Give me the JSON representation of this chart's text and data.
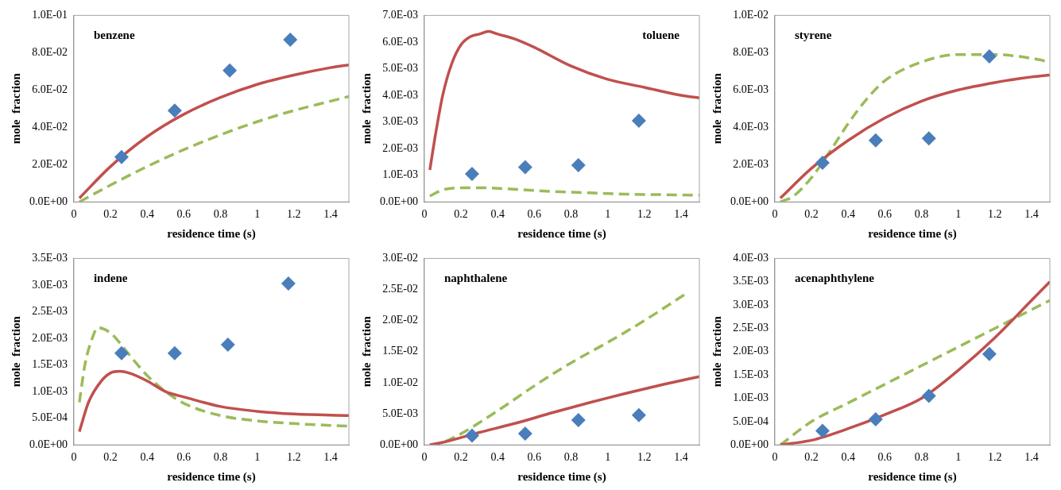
{
  "chart_data": [
    {
      "type": "line",
      "xlabel": "residence time (s)",
      "ylabel": "mole  fraction",
      "annotations": [
        "benzene"
      ],
      "xlim": [
        0,
        1.5
      ],
      "xticks": [
        0,
        0.2,
        0.4,
        0.6,
        0.8,
        1,
        1.2,
        1.4
      ],
      "ylim": [
        0,
        0.1
      ],
      "yticks": [
        {
          "value": 0,
          "label": "0.0E+00"
        },
        {
          "value": 0.02,
          "label": "2.0E-02"
        },
        {
          "value": 0.04,
          "label": "4.0E-02"
        },
        {
          "value": 0.06,
          "label": "6.0E-02"
        },
        {
          "value": 0.08,
          "label": "8.0E-02"
        },
        {
          "value": 0.1,
          "label": "1.0E-01"
        }
      ],
      "grid": false,
      "legend": false,
      "series": [
        {
          "type": "scatter",
          "marker": "diamond",
          "color": "#4a7ebb",
          "x": [
            0.26,
            0.55,
            0.85,
            1.18
          ],
          "values": [
            0.024,
            0.049,
            0.0705,
            0.087
          ]
        },
        {
          "type": "line",
          "marker": "none",
          "line_style": "solid",
          "color": "#c0504d",
          "x": [
            0.03,
            0.2,
            0.4,
            0.6,
            0.8,
            1.0,
            1.2,
            1.4,
            1.5
          ],
          "values": [
            0.002,
            0.019,
            0.035,
            0.047,
            0.056,
            0.063,
            0.068,
            0.072,
            0.0735
          ]
        },
        {
          "type": "line",
          "marker": "none",
          "line_style": "dashed",
          "color": "#9bbb59",
          "x": [
            0.03,
            0.2,
            0.4,
            0.6,
            0.8,
            1.0,
            1.2,
            1.4,
            1.5
          ],
          "values": [
            0,
            0.009,
            0.019,
            0.028,
            0.036,
            0.043,
            0.049,
            0.054,
            0.0565
          ]
        }
      ]
    },
    {
      "type": "line",
      "xlabel": "residence time (s)",
      "ylabel": "mole  fraction",
      "annotations": [
        "toluene"
      ],
      "xlim": [
        0,
        1.5
      ],
      "xticks": [
        0,
        0.2,
        0.4,
        0.6,
        0.8,
        1,
        1.2,
        1.4
      ],
      "ylim": [
        0,
        0.007
      ],
      "yticks": [
        {
          "value": 0,
          "label": "0.0E+00"
        },
        {
          "value": 0.001,
          "label": "1.0E-03"
        },
        {
          "value": 0.002,
          "label": "2.0E-03"
        },
        {
          "value": 0.003,
          "label": "3.0E-03"
        },
        {
          "value": 0.004,
          "label": "4.0E-03"
        },
        {
          "value": 0.005,
          "label": "5.0E-03"
        },
        {
          "value": 0.006,
          "label": "6.0E-03"
        },
        {
          "value": 0.007,
          "label": "7.0E-03"
        }
      ],
      "grid": false,
      "legend": false,
      "series": [
        {
          "type": "scatter",
          "marker": "diamond",
          "color": "#4a7ebb",
          "x": [
            0.26,
            0.55,
            0.84,
            1.17
          ],
          "values": [
            0.00105,
            0.0013,
            0.00138,
            0.00305
          ]
        },
        {
          "type": "line",
          "marker": "none",
          "line_style": "solid",
          "color": "#c0504d",
          "x": [
            0.03,
            0.06,
            0.1,
            0.15,
            0.2,
            0.25,
            0.3,
            0.35,
            0.4,
            0.5,
            0.6,
            0.8,
            1.0,
            1.2,
            1.4,
            1.5
          ],
          "values": [
            0.0012,
            0.0025,
            0.004,
            0.0052,
            0.0059,
            0.0062,
            0.0063,
            0.0064,
            0.0063,
            0.0061,
            0.0058,
            0.0051,
            0.0046,
            0.0043,
            0.004,
            0.0039
          ]
        },
        {
          "type": "line",
          "marker": "none",
          "line_style": "dashed",
          "color": "#9bbb59",
          "x": [
            0.03,
            0.1,
            0.2,
            0.3,
            0.5,
            0.7,
            0.9,
            1.1,
            1.3,
            1.5
          ],
          "values": [
            0.00022,
            0.00045,
            0.00053,
            0.00053,
            0.00047,
            0.00039,
            0.00034,
            0.00029,
            0.00027,
            0.00025
          ]
        }
      ]
    },
    {
      "type": "line",
      "xlabel": "residence time (s)",
      "ylabel": "mole  fraction",
      "annotations": [
        "styrene"
      ],
      "xlim": [
        0,
        1.5
      ],
      "xticks": [
        0,
        0.2,
        0.4,
        0.6,
        0.8,
        1,
        1.2,
        1.4
      ],
      "ylim": [
        0,
        0.01
      ],
      "yticks": [
        {
          "value": 0,
          "label": "0.0E+00"
        },
        {
          "value": 0.002,
          "label": "2.0E-03"
        },
        {
          "value": 0.004,
          "label": "4.0E-03"
        },
        {
          "value": 0.006,
          "label": "6.0E-03"
        },
        {
          "value": 0.008,
          "label": "8.0E-03"
        },
        {
          "value": 0.01,
          "label": "1.0E-02"
        }
      ],
      "grid": false,
      "legend": false,
      "series": [
        {
          "type": "scatter",
          "marker": "diamond",
          "color": "#4a7ebb",
          "x": [
            0.26,
            0.55,
            0.84,
            1.17
          ],
          "values": [
            0.0021,
            0.0033,
            0.0034,
            0.0078
          ]
        },
        {
          "type": "line",
          "marker": "none",
          "line_style": "solid",
          "color": "#c0504d",
          "x": [
            0.03,
            0.2,
            0.4,
            0.6,
            0.8,
            1.0,
            1.2,
            1.4,
            1.5
          ],
          "values": [
            0.0002,
            0.0018,
            0.0033,
            0.0045,
            0.0054,
            0.006,
            0.0064,
            0.0067,
            0.0068
          ]
        },
        {
          "type": "line",
          "marker": "none",
          "line_style": "dashed",
          "color": "#9bbb59",
          "x": [
            0.03,
            0.1,
            0.2,
            0.3,
            0.4,
            0.5,
            0.6,
            0.8,
            1.0,
            1.2,
            1.4,
            1.5
          ],
          "values": [
            0,
            0.0003,
            0.0013,
            0.0027,
            0.0042,
            0.0055,
            0.0065,
            0.0075,
            0.0079,
            0.0079,
            0.0077,
            0.0075
          ]
        }
      ]
    },
    {
      "type": "line",
      "xlabel": "residence time (s)",
      "ylabel": "mole  fraction",
      "annotations": [
        "indene"
      ],
      "xlim": [
        0,
        1.5
      ],
      "xticks": [
        0,
        0.2,
        0.4,
        0.6,
        0.8,
        1,
        1.2,
        1.4
      ],
      "ylim": [
        0,
        0.0035
      ],
      "yticks": [
        {
          "value": 0,
          "label": "0.0E+00"
        },
        {
          "value": 0.0005,
          "label": "5.0E-04"
        },
        {
          "value": 0.001,
          "label": "1.0E-03"
        },
        {
          "value": 0.0015,
          "label": "1.5E-03"
        },
        {
          "value": 0.002,
          "label": "2.0E-03"
        },
        {
          "value": 0.0025,
          "label": "2.5E-03"
        },
        {
          "value": 0.003,
          "label": "3.0E-03"
        },
        {
          "value": 0.0035,
          "label": "3.5E-03"
        }
      ],
      "grid": false,
      "legend": false,
      "series": [
        {
          "type": "scatter",
          "marker": "diamond",
          "color": "#4a7ebb",
          "x": [
            0.26,
            0.55,
            0.84,
            1.17
          ],
          "values": [
            0.00172,
            0.00172,
            0.00188,
            0.00303
          ]
        },
        {
          "type": "line",
          "marker": "none",
          "line_style": "solid",
          "color": "#c0504d",
          "x": [
            0.03,
            0.08,
            0.15,
            0.2,
            0.25,
            0.3,
            0.4,
            0.5,
            0.6,
            0.8,
            1.0,
            1.2,
            1.5
          ],
          "values": [
            0.00025,
            0.0008,
            0.0012,
            0.00135,
            0.00138,
            0.00135,
            0.0012,
            0.001,
            0.0009,
            0.00072,
            0.00063,
            0.00058,
            0.00055
          ]
        },
        {
          "type": "line",
          "marker": "none",
          "line_style": "dashed",
          "color": "#9bbb59",
          "x": [
            0.03,
            0.06,
            0.1,
            0.13,
            0.2,
            0.3,
            0.4,
            0.5,
            0.6,
            0.8,
            1.0,
            1.2,
            1.5
          ],
          "values": [
            0.0008,
            0.0015,
            0.002,
            0.0022,
            0.0021,
            0.0017,
            0.0013,
            0.001,
            0.00078,
            0.00055,
            0.00045,
            0.0004,
            0.00035
          ]
        }
      ]
    },
    {
      "type": "line",
      "xlabel": "residence time (s)",
      "ylabel": "mole  fraction",
      "annotations": [
        "naphthalene"
      ],
      "xlim": [
        0,
        1.5
      ],
      "xticks": [
        0,
        0.2,
        0.4,
        0.6,
        0.8,
        1,
        1.2,
        1.4
      ],
      "ylim": [
        0,
        0.03
      ],
      "yticks": [
        {
          "value": 0,
          "label": "0.0E+00"
        },
        {
          "value": 0.005,
          "label": "5.0E-03"
        },
        {
          "value": 0.01,
          "label": "1.0E-02"
        },
        {
          "value": 0.015,
          "label": "1.5E-02"
        },
        {
          "value": 0.02,
          "label": "2.0E-02"
        },
        {
          "value": 0.025,
          "label": "2.5E-02"
        },
        {
          "value": 0.03,
          "label": "3.0E-02"
        }
      ],
      "grid": false,
      "legend": false,
      "series": [
        {
          "type": "scatter",
          "marker": "diamond",
          "color": "#4a7ebb",
          "x": [
            0.26,
            0.55,
            0.84,
            1.17
          ],
          "values": [
            0.0015,
            0.0018,
            0.004,
            0.0048
          ]
        },
        {
          "type": "line",
          "marker": "none",
          "line_style": "solid",
          "color": "#c0504d",
          "x": [
            0.03,
            0.1,
            0.3,
            0.5,
            0.7,
            0.9,
            1.1,
            1.3,
            1.5
          ],
          "values": [
            0,
            0.0004,
            0.002,
            0.0035,
            0.0052,
            0.0068,
            0.0083,
            0.0097,
            0.011
          ]
        },
        {
          "type": "line",
          "marker": "none",
          "line_style": "dashed",
          "color": "#9bbb59",
          "x": [
            0.03,
            0.1,
            0.2,
            0.4,
            0.6,
            0.8,
            1.0,
            1.2,
            1.42
          ],
          "values": [
            0,
            0.0004,
            0.0018,
            0.0055,
            0.0095,
            0.0132,
            0.0165,
            0.02,
            0.0242
          ]
        }
      ]
    },
    {
      "type": "line",
      "xlabel": "residence time (s)",
      "ylabel": "mole  fraction",
      "annotations": [
        "acenaphthylene"
      ],
      "xlim": [
        0,
        1.5
      ],
      "xticks": [
        0,
        0.2,
        0.4,
        0.6,
        0.8,
        1,
        1.2,
        1.4
      ],
      "ylim": [
        0,
        0.004
      ],
      "yticks": [
        {
          "value": 0,
          "label": "0.0E+00"
        },
        {
          "value": 0.0005,
          "label": "5.0E-04"
        },
        {
          "value": 0.001,
          "label": "1.0E-03"
        },
        {
          "value": 0.0015,
          "label": "1.5E-03"
        },
        {
          "value": 0.002,
          "label": "2.0E-03"
        },
        {
          "value": 0.0025,
          "label": "2.5E-03"
        },
        {
          "value": 0.003,
          "label": "3.0E-03"
        },
        {
          "value": 0.0035,
          "label": "3.5E-03"
        },
        {
          "value": 0.004,
          "label": "4.0E-03"
        }
      ],
      "grid": false,
      "legend": false,
      "series": [
        {
          "type": "scatter",
          "marker": "diamond",
          "color": "#4a7ebb",
          "x": [
            0.26,
            0.55,
            0.84,
            1.17
          ],
          "values": [
            0.0003,
            0.00055,
            0.00105,
            0.00195
          ]
        },
        {
          "type": "line",
          "marker": "none",
          "line_style": "solid",
          "color": "#c0504d",
          "x": [
            0.03,
            0.2,
            0.4,
            0.6,
            0.8,
            1.0,
            1.2,
            1.4,
            1.5
          ],
          "values": [
            0,
            0.0001,
            0.00035,
            0.00065,
            0.001,
            0.0016,
            0.0023,
            0.0031,
            0.0035
          ]
        },
        {
          "type": "line",
          "marker": "none",
          "line_style": "dashed",
          "color": "#9bbb59",
          "x": [
            0.03,
            0.2,
            0.4,
            0.6,
            0.8,
            1.0,
            1.2,
            1.4,
            1.5
          ],
          "values": [
            0,
            0.0005,
            0.0009,
            0.0013,
            0.0017,
            0.0021,
            0.0025,
            0.0029,
            0.0031
          ]
        }
      ]
    }
  ]
}
